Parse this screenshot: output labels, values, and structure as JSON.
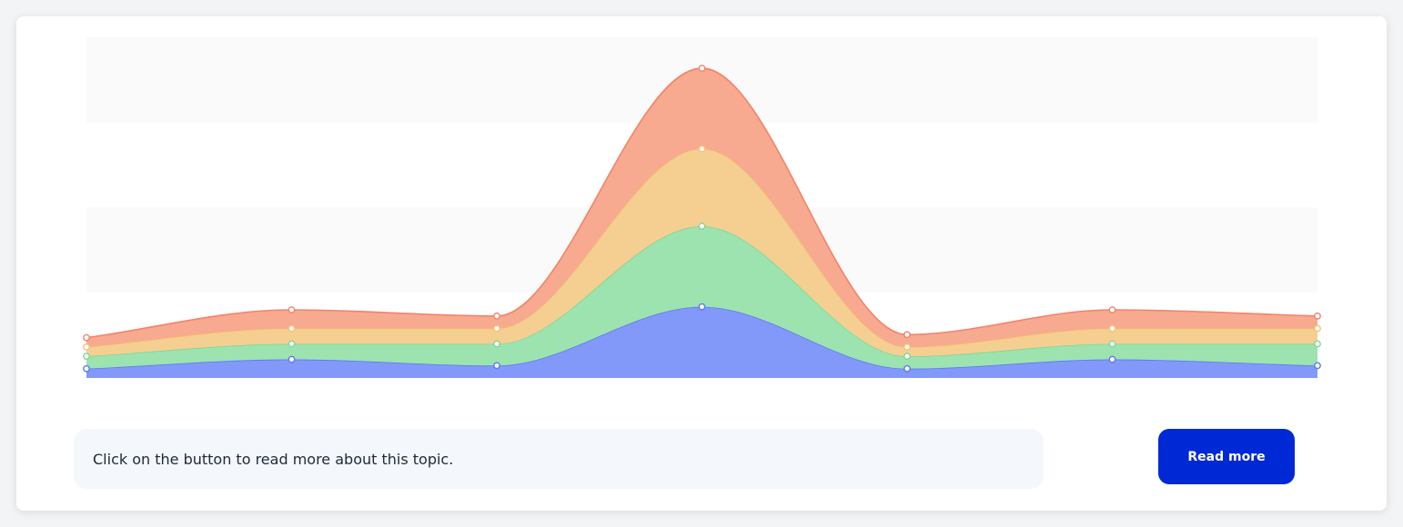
{
  "chart_data": {
    "type": "area",
    "stacked": true,
    "x": [
      0,
      1,
      2,
      3,
      4,
      5,
      6
    ],
    "series": [
      {
        "values": [
          3,
          6,
          4,
          23,
          3,
          6,
          4
        ]
      },
      {
        "values": [
          4,
          5,
          7,
          26,
          4,
          5,
          7
        ]
      },
      {
        "values": [
          3,
          5,
          5,
          25,
          3,
          5,
          5
        ]
      },
      {
        "values": [
          3,
          6,
          4,
          26,
          4,
          6,
          4
        ]
      }
    ],
    "ylim": [
      0,
      110
    ],
    "grid": true,
    "legend": "none",
    "colors": {
      "series_fill": [
        "#8399fa",
        "#9ce3b0",
        "#f5cf91",
        "#f7aa8f"
      ],
      "series_stroke": [
        "#5b79f5",
        "#7fd696",
        "#f2c276",
        "#f2836a"
      ],
      "band": "#fafafa"
    }
  },
  "info": {
    "text": "Click on the button to read more about this topic."
  },
  "button": {
    "label": "Read more"
  }
}
